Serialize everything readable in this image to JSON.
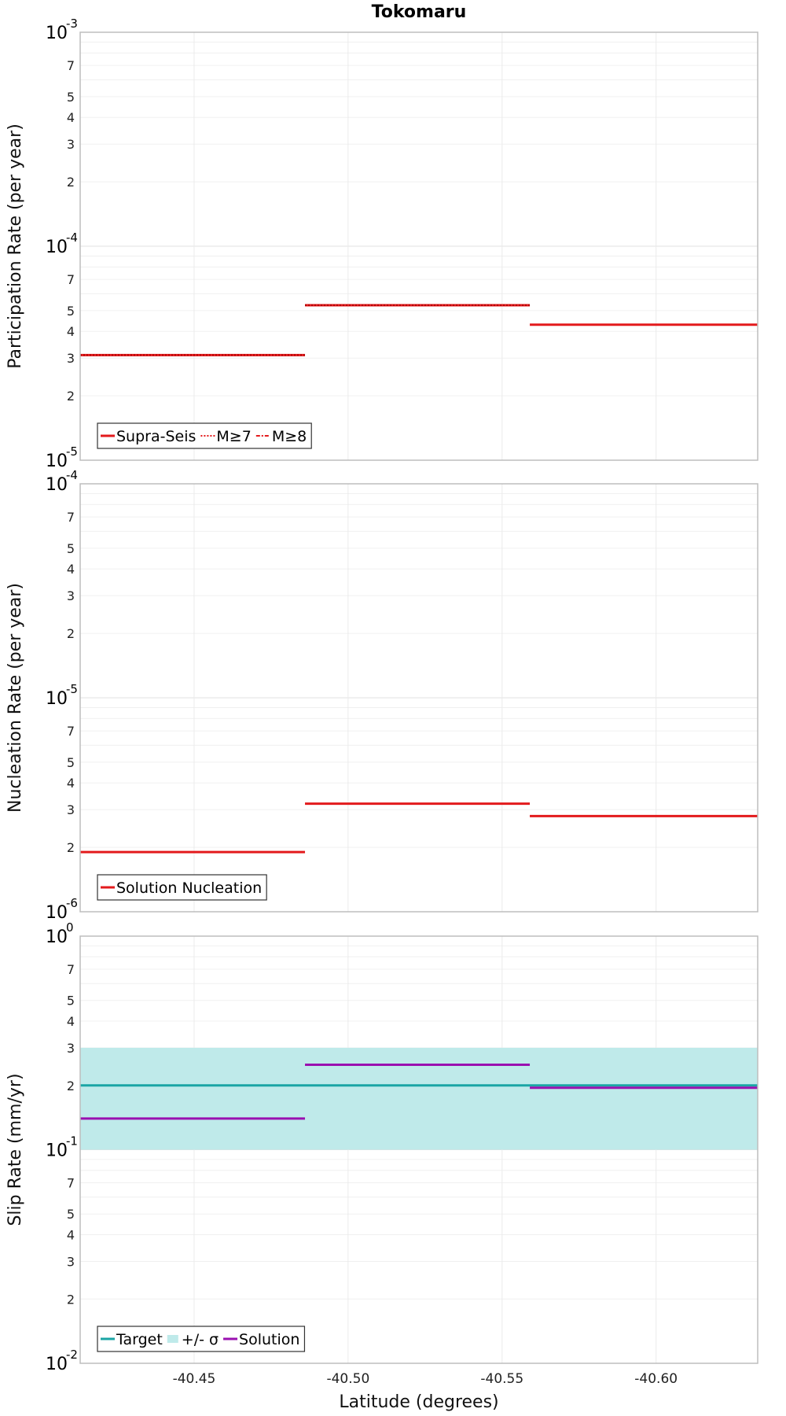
{
  "title": "Tokomaru",
  "xlabel": "Latitude (degrees)",
  "x_ticks": [
    -40.45,
    -40.5,
    -40.55,
    -40.6
  ],
  "x_tick_labels": [
    "-40.45",
    "-40.50",
    "-40.55",
    "-40.60"
  ],
  "xlim": [
    -40.413,
    -40.633
  ],
  "chart_data": [
    {
      "type": "line",
      "name": "participation",
      "ylabel": "Participation Rate (per year)",
      "yscale": "log",
      "ylim": [
        1e-05,
        0.001
      ],
      "decade_ticks": [
        {
          "base": "10",
          "exp": "-5",
          "value": 1e-05
        },
        {
          "base": "10",
          "exp": "-4",
          "value": 0.0001
        },
        {
          "base": "10",
          "exp": "-3",
          "value": 0.001
        }
      ],
      "minor_tick_labels": [
        "2",
        "3",
        "4",
        "5",
        "7"
      ],
      "series": [
        {
          "name": "Supra-Seis",
          "color": "#e31a1c",
          "style": "solid",
          "segments": [
            {
              "x0": -40.413,
              "x1": -40.486,
              "y": 3.1e-05
            },
            {
              "x0": -40.486,
              "x1": -40.559,
              "y": 5.3e-05
            },
            {
              "x0": -40.559,
              "x1": -40.633,
              "y": 4.3e-05
            }
          ]
        },
        {
          "name": "M≥7",
          "color": "#e31a1c",
          "style": "dotted",
          "segments": [
            {
              "x0": -40.413,
              "x1": -40.486,
              "y": 3.1e-05
            },
            {
              "x0": -40.486,
              "x1": -40.559,
              "y": 5.3e-05
            }
          ]
        },
        {
          "name": "M≥8",
          "color": "#e31a1c",
          "style": "dashdot",
          "segments": []
        }
      ],
      "legend_position": "bottom-left"
    },
    {
      "type": "line",
      "name": "nucleation",
      "ylabel": "Nucleation Rate (per year)",
      "yscale": "log",
      "ylim": [
        1e-06,
        0.0001
      ],
      "decade_ticks": [
        {
          "base": "10",
          "exp": "-6",
          "value": 1e-06
        },
        {
          "base": "10",
          "exp": "-5",
          "value": 1e-05
        },
        {
          "base": "10",
          "exp": "-4",
          "value": 0.0001
        }
      ],
      "minor_tick_labels": [
        "2",
        "3",
        "4",
        "5",
        "7"
      ],
      "series": [
        {
          "name": "Solution Nucleation",
          "color": "#e31a1c",
          "style": "solid",
          "segments": [
            {
              "x0": -40.413,
              "x1": -40.486,
              "y": 1.9e-06
            },
            {
              "x0": -40.486,
              "x1": -40.559,
              "y": 3.2e-06
            },
            {
              "x0": -40.559,
              "x1": -40.633,
              "y": 2.8e-06
            }
          ]
        }
      ],
      "legend_position": "bottom-left"
    },
    {
      "type": "line",
      "name": "slip",
      "ylabel": "Slip Rate (mm/yr)",
      "yscale": "log",
      "ylim": [
        0.01,
        1
      ],
      "decade_ticks": [
        {
          "base": "10",
          "exp": "-2",
          "value": 0.01
        },
        {
          "base": "10",
          "exp": "-1",
          "value": 0.1
        },
        {
          "base": "10",
          "exp": "0",
          "value": 1
        }
      ],
      "minor_tick_labels": [
        "2",
        "3",
        "4",
        "5",
        "7"
      ],
      "band": {
        "name": "+/- σ",
        "color": "#bfeaea",
        "y0": 0.1,
        "y1": 0.3
      },
      "series": [
        {
          "name": "Target",
          "color": "#1aa5a5",
          "style": "solid",
          "segments": [
            {
              "x0": -40.413,
              "x1": -40.633,
              "y": 0.2
            }
          ]
        },
        {
          "name": "Solution",
          "color": "#9a10b0",
          "style": "solid",
          "segments": [
            {
              "x0": -40.413,
              "x1": -40.486,
              "y": 0.14
            },
            {
              "x0": -40.486,
              "x1": -40.559,
              "y": 0.25
            },
            {
              "x0": -40.559,
              "x1": -40.633,
              "y": 0.195
            }
          ]
        }
      ],
      "legend_order": [
        "Target",
        "+/- σ",
        "Solution"
      ],
      "legend_position": "bottom-left"
    }
  ]
}
